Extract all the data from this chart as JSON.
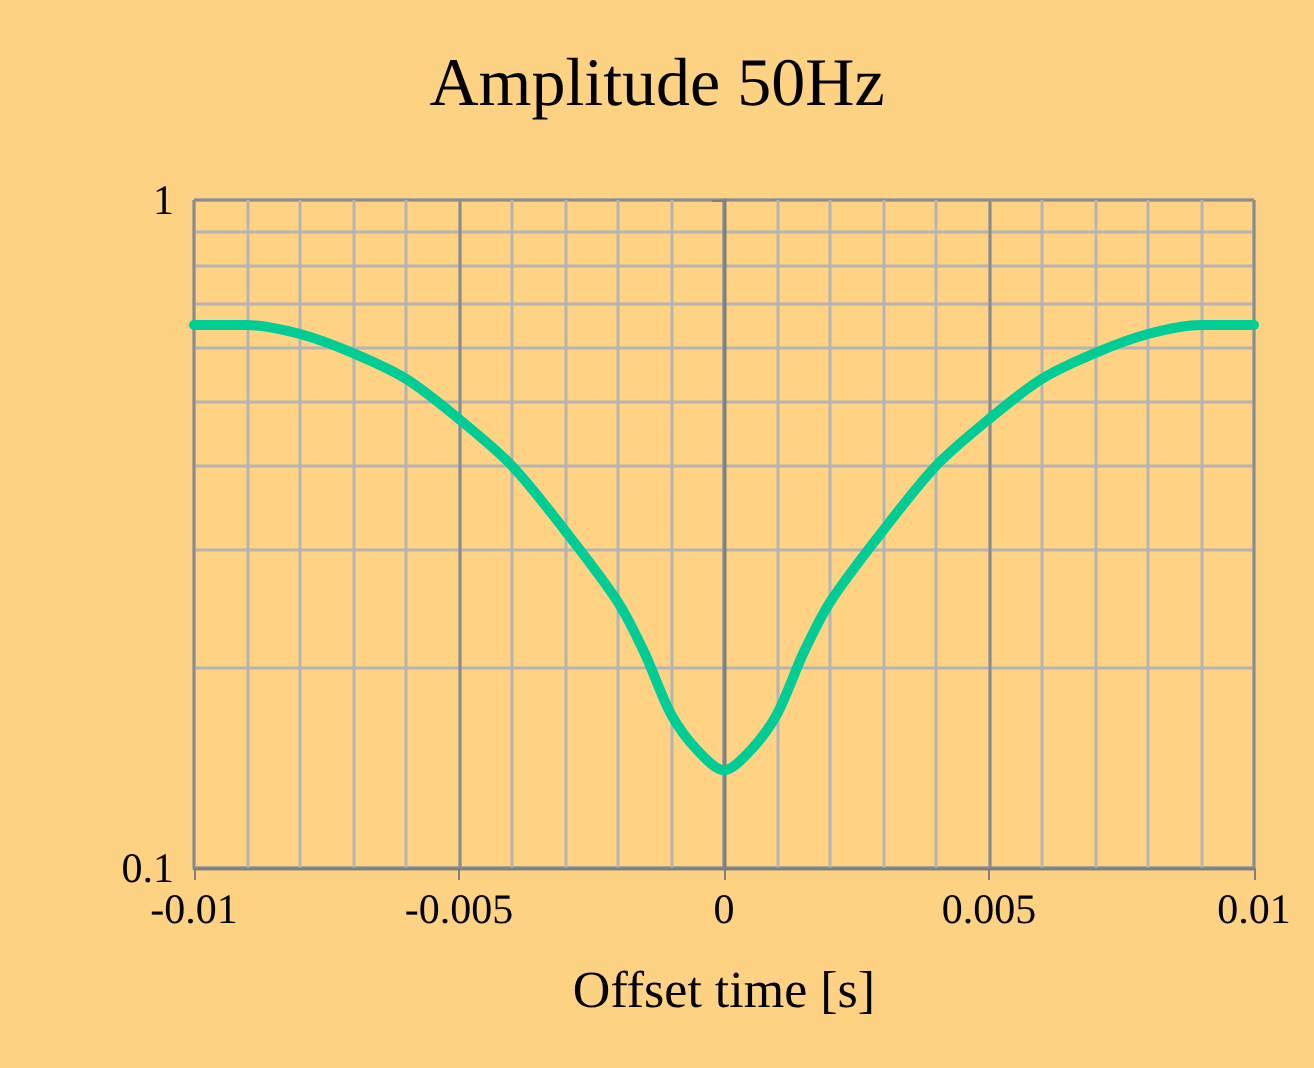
{
  "chart_data": {
    "type": "line",
    "title": "Amplitude 50Hz",
    "xlabel": "Offset time [s]",
    "x": [
      -0.01,
      -0.009,
      -0.008,
      -0.007,
      -0.006,
      -0.005,
      -0.004,
      -0.003,
      -0.002,
      -0.0015,
      -0.001,
      -0.0005,
      0,
      0.0005,
      0.001,
      0.0015,
      0.002,
      0.003,
      0.004,
      0.005,
      0.006,
      0.007,
      0.008,
      0.009,
      0.01
    ],
    "series": [
      {
        "color": "#00cc96",
        "values": [
          0.65,
          0.65,
          0.63,
          0.59,
          0.54,
          0.47,
          0.4,
          0.32,
          0.25,
          0.21,
          0.17,
          0.15,
          0.14,
          0.15,
          0.17,
          0.21,
          0.25,
          0.32,
          0.4,
          0.47,
          0.54,
          0.59,
          0.63,
          0.65,
          0.65
        ]
      }
    ],
    "xlim": [
      -0.01,
      0.01
    ],
    "xticks": [
      -0.01,
      {
        "value": -0.009,
        "label": null
      },
      {
        "value": -0.008,
        "label": null
      },
      {
        "value": -0.007,
        "label": null
      },
      {
        "value": -0.006,
        "label": null
      },
      -0.005,
      {
        "value": -0.004,
        "label": null
      },
      {
        "value": -0.003,
        "label": null
      },
      {
        "value": -0.002,
        "label": null
      },
      {
        "value": -0.001,
        "label": null
      },
      0,
      {
        "value": 0.001,
        "label": null
      },
      {
        "value": 0.002,
        "label": null
      },
      {
        "value": 0.003,
        "label": null
      },
      {
        "value": 0.004,
        "label": null
      },
      0.005,
      {
        "value": 0.006,
        "label": null
      },
      {
        "value": 0.007,
        "label": null
      },
      {
        "value": 0.008,
        "label": null
      },
      {
        "value": 0.009,
        "label": null
      },
      0.01
    ],
    "ylim": [
      0.1,
      1
    ],
    "yticks": [
      0.1,
      {
        "value": 0.2,
        "label": null
      },
      {
        "value": 0.3,
        "label": null
      },
      {
        "value": 0.4,
        "label": null
      },
      {
        "value": 0.5,
        "label": null
      },
      {
        "value": 0.6,
        "label": null
      },
      {
        "value": 0.7,
        "label": null
      },
      {
        "value": 0.8,
        "label": null
      },
      {
        "value": 0.9,
        "label": null
      },
      1
    ],
    "log": "y",
    "grid": true,
    "marker": "none",
    "line_style": "solid"
  }
}
